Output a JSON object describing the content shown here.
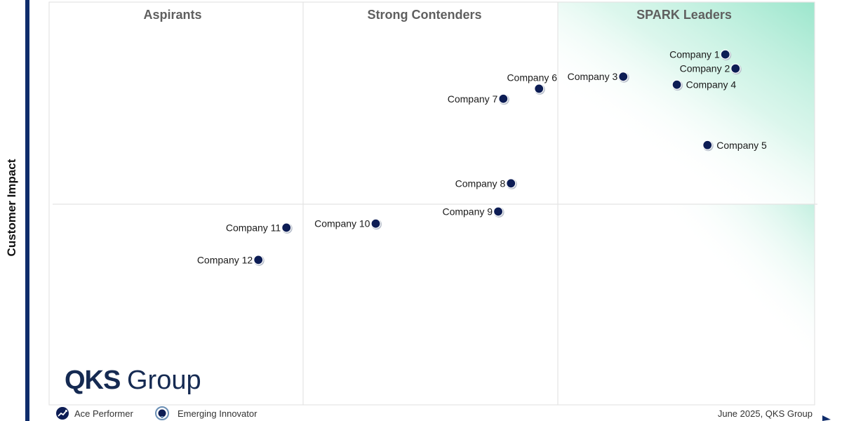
{
  "chart_data": {
    "type": "scatter",
    "title": "",
    "xlabel": "",
    "ylabel": "Customer Impact",
    "xlim": [
      0,
      3
    ],
    "ylim": [
      0,
      2
    ],
    "quadrants": [
      "Aspirants",
      "Strong Contenders",
      "SPARK Leaders"
    ],
    "points": [
      {
        "label": "Company 1",
        "x": 2.65,
        "y": 1.74,
        "label_side": "left"
      },
      {
        "label": "Company 2",
        "x": 2.69,
        "y": 1.67,
        "label_side": "left"
      },
      {
        "label": "Company 3",
        "x": 2.25,
        "y": 1.63,
        "label_side": "left"
      },
      {
        "label": "Company 4",
        "x": 2.46,
        "y": 1.59,
        "label_side": "right"
      },
      {
        "label": "Company 5",
        "x": 2.58,
        "y": 1.29,
        "label_side": "right"
      },
      {
        "label": "Company 6",
        "x": 1.92,
        "y": 1.57,
        "label_side": "above"
      },
      {
        "label": "Company 7",
        "x": 1.78,
        "y": 1.52,
        "label_side": "left"
      },
      {
        "label": "Company 8",
        "x": 1.81,
        "y": 1.1,
        "label_side": "left"
      },
      {
        "label": "Company 9",
        "x": 1.76,
        "y": 0.96,
        "label_side": "left"
      },
      {
        "label": "Company 10",
        "x": 1.28,
        "y": 0.9,
        "label_side": "left"
      },
      {
        "label": "Company 11",
        "x": 0.93,
        "y": 0.88,
        "label_side": "left"
      },
      {
        "label": "Company 12",
        "x": 0.82,
        "y": 0.72,
        "label_side": "left"
      }
    ]
  },
  "legend": {
    "ace_performer": "Ace Performer",
    "emerging_innovator": "Emerging Innovator"
  },
  "footer": {
    "date": "June 2025, QKS Group"
  },
  "logo": {
    "bold": "QKS",
    "regular": "Group"
  },
  "colors": {
    "point": "#0d1d55",
    "axis": "#0f2c6b",
    "grid": "#e4e4e4",
    "leader_gradient": "#9be6cc"
  }
}
